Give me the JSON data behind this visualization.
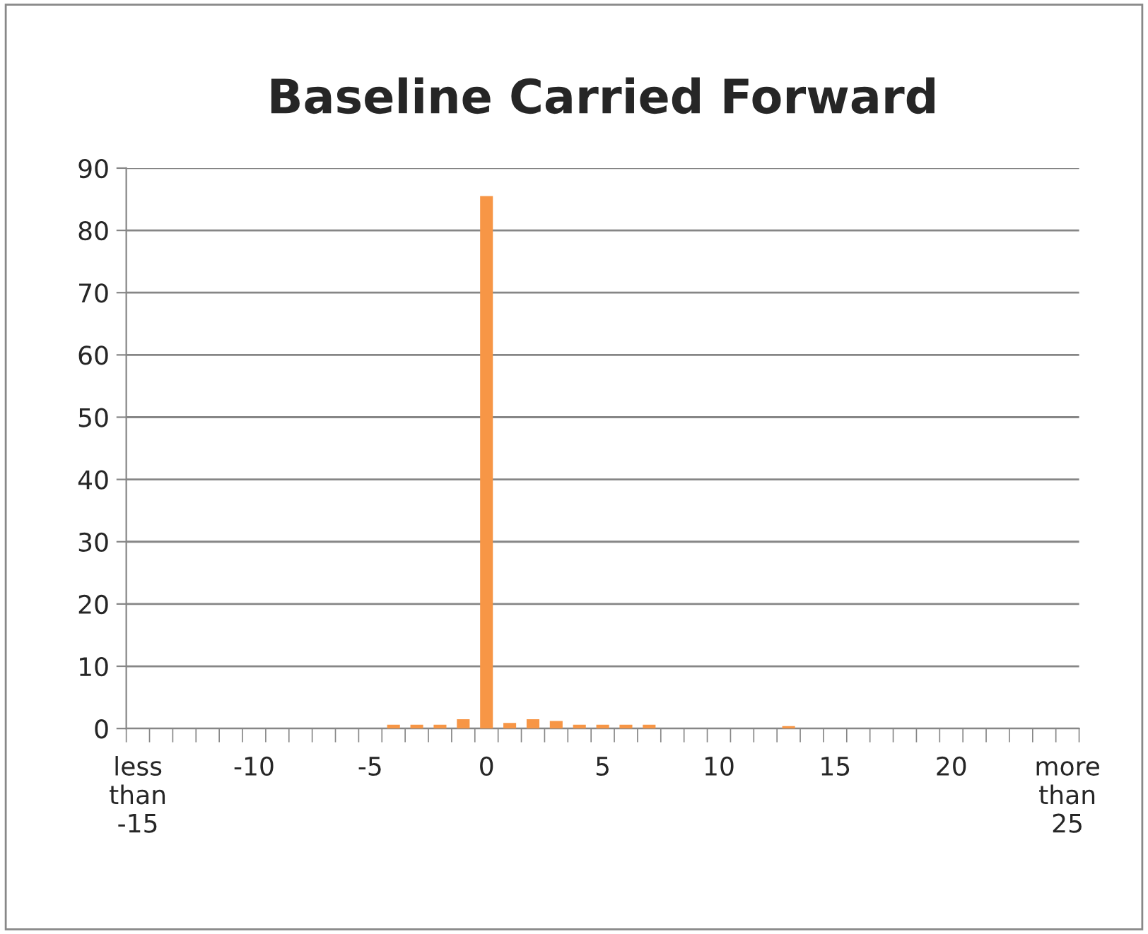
{
  "chart_data": {
    "type": "bar",
    "title": "Baseline Carried Forward",
    "categories": [
      "less than -15",
      null,
      null,
      null,
      null,
      "-10",
      null,
      null,
      null,
      null,
      "-5",
      null,
      null,
      null,
      null,
      "0",
      null,
      null,
      null,
      null,
      "5",
      null,
      null,
      null,
      null,
      "10",
      null,
      null,
      null,
      null,
      "15",
      null,
      null,
      null,
      null,
      "20",
      null,
      null,
      null,
      null,
      "more than 25"
    ],
    "values": [
      0,
      0,
      0,
      0,
      0,
      0,
      0,
      0,
      0,
      0,
      0,
      0.6,
      0.6,
      0.6,
      1.5,
      85.5,
      0.9,
      1.5,
      1.2,
      0.6,
      0.6,
      0.6,
      0.6,
      0,
      0,
      0,
      0,
      0,
      0.4,
      0,
      0,
      0,
      0,
      0,
      0,
      0,
      0,
      0,
      0,
      0,
      0
    ],
    "color": "#f79646",
    "ylim": [
      0,
      90
    ],
    "yticks": [
      0,
      10,
      20,
      30,
      40,
      50,
      60,
      70,
      80,
      90
    ],
    "grid": "y",
    "legend": false
  }
}
